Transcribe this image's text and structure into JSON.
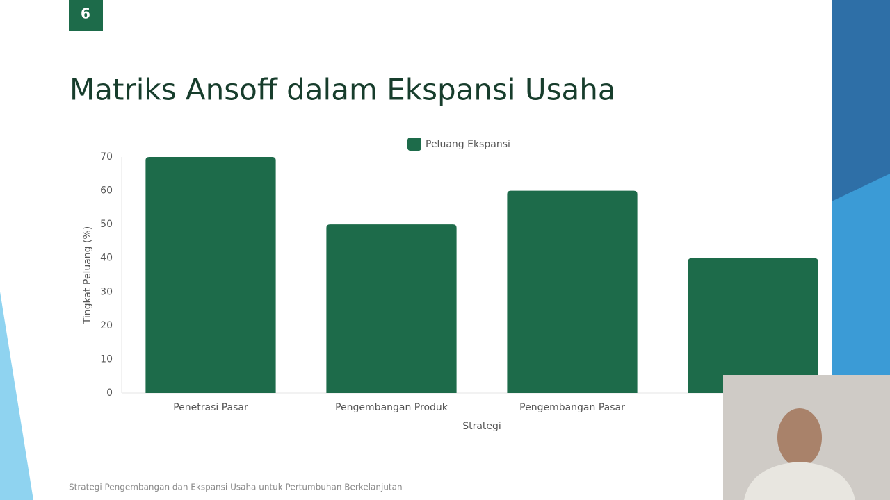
{
  "slide_number": "6",
  "footer": "Strategi Pengembangan dan Ekspansi Usaha untuk Pertumbuhan Berkelanjutan",
  "chart_data": {
    "type": "bar",
    "title": "Matriks Ansoff dalam Ekspansi Usaha",
    "x_label": "Strategi",
    "y_label": "Tingkat Peluang (%)",
    "categories": [
      "Penetrasi Pasar",
      "Pengembangan Produk",
      "Pengembangan Pasar",
      null
    ],
    "series": [
      {
        "name": "Peluang Ekspansi",
        "color": "#1d6b4a",
        "values": [
          70,
          50,
          60,
          40
        ]
      }
    ],
    "ylim": [
      0,
      70
    ],
    "yticks": [
      0,
      10,
      20,
      30,
      40,
      50,
      60,
      70
    ],
    "grid": false,
    "legend": "top"
  }
}
